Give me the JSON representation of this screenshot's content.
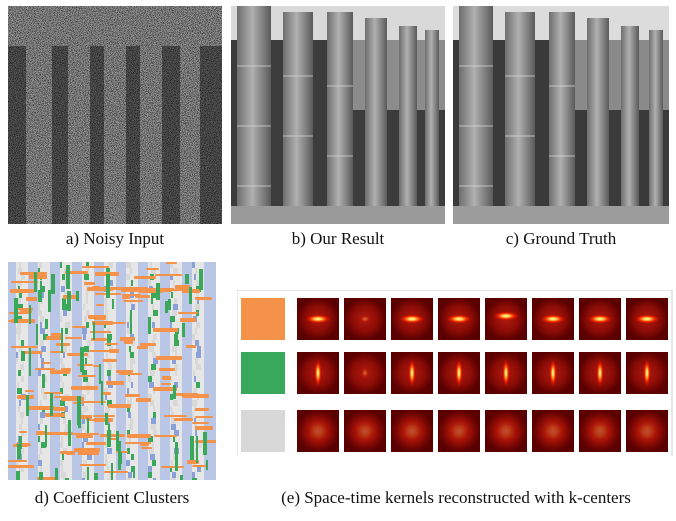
{
  "captions": {
    "a": "a) Noisy Input",
    "b": "b) Our Result",
    "c": "c) Ground Truth",
    "d": "d) Coefficient Clusters",
    "e": "(e) Space-time kernels reconstructed with k-centers"
  },
  "clusters": {
    "colors": [
      "#f5924a",
      "#3aa85a",
      "#d8d8d8"
    ]
  },
  "kernels": {
    "rows": [
      {
        "swatch_color": "#f5924a",
        "orientation": "horizontal"
      },
      {
        "swatch_color": "#3aa85a",
        "orientation": "vertical"
      },
      {
        "swatch_color": "#d8d8d8",
        "orientation": "diffuse"
      }
    ],
    "columns": 8
  }
}
